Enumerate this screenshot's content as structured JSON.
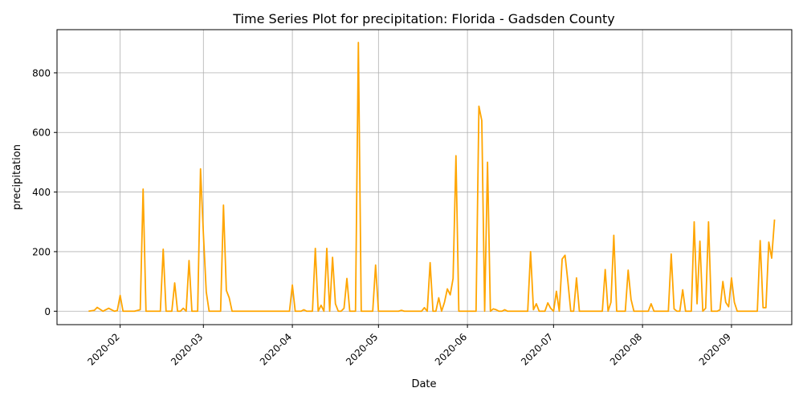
{
  "chart_data": {
    "type": "line",
    "title": "Time Series Plot for precipitation: Florida - Gadsden County",
    "xlabel": "Date",
    "ylabel": "precipitation",
    "x_range": [
      "2020-01-10",
      "2020-09-22"
    ],
    "ylim": [
      -45,
      945
    ],
    "grid": true,
    "line_color": "#FFA500",
    "y_ticks": [
      0,
      200,
      400,
      600,
      800
    ],
    "x_ticks": [
      "2020-02-01",
      "2020-03-01",
      "2020-04-01",
      "2020-05-01",
      "2020-06-01",
      "2020-07-01",
      "2020-08-01",
      "2020-09-01"
    ],
    "x_tick_labels": [
      "2020-02",
      "2020-03",
      "2020-04",
      "2020-05",
      "2020-06",
      "2020-07",
      "2020-08",
      "2020-09"
    ],
    "series": [
      {
        "points": [
          [
            "2020-01-21",
            0
          ],
          [
            "2020-01-23",
            3
          ],
          [
            "2020-01-24",
            13
          ],
          [
            "2020-01-26",
            0
          ],
          [
            "2020-01-28",
            10
          ],
          [
            "2020-01-30",
            0
          ],
          [
            "2020-01-31",
            2
          ],
          [
            "2020-02-01",
            53
          ],
          [
            "2020-02-02",
            0
          ],
          [
            "2020-02-06",
            0
          ],
          [
            "2020-02-08",
            5
          ],
          [
            "2020-02-09",
            410
          ],
          [
            "2020-02-10",
            0
          ],
          [
            "2020-02-15",
            0
          ],
          [
            "2020-02-16",
            208
          ],
          [
            "2020-02-17",
            0
          ],
          [
            "2020-02-19",
            0
          ],
          [
            "2020-02-20",
            95
          ],
          [
            "2020-02-21",
            0
          ],
          [
            "2020-02-22",
            0
          ],
          [
            "2020-02-23",
            10
          ],
          [
            "2020-02-24",
            0
          ],
          [
            "2020-02-25",
            170
          ],
          [
            "2020-02-26",
            0
          ],
          [
            "2020-02-28",
            0
          ],
          [
            "2020-02-29",
            478
          ],
          [
            "2020-03-01",
            260
          ],
          [
            "2020-03-02",
            65
          ],
          [
            "2020-03-03",
            0
          ],
          [
            "2020-03-07",
            0
          ],
          [
            "2020-03-08",
            356
          ],
          [
            "2020-03-09",
            70
          ],
          [
            "2020-03-10",
            45
          ],
          [
            "2020-03-11",
            0
          ],
          [
            "2020-03-31",
            0
          ],
          [
            "2020-04-01",
            88
          ],
          [
            "2020-04-02",
            0
          ],
          [
            "2020-04-04",
            0
          ],
          [
            "2020-04-05",
            5
          ],
          [
            "2020-04-06",
            0
          ],
          [
            "2020-04-08",
            0
          ],
          [
            "2020-04-09",
            211
          ],
          [
            "2020-04-10",
            0
          ],
          [
            "2020-04-11",
            20
          ],
          [
            "2020-04-12",
            0
          ],
          [
            "2020-04-13",
            211
          ],
          [
            "2020-04-14",
            0
          ],
          [
            "2020-04-15",
            181
          ],
          [
            "2020-04-16",
            25
          ],
          [
            "2020-04-17",
            0
          ],
          [
            "2020-04-18",
            0
          ],
          [
            "2020-04-19",
            10
          ],
          [
            "2020-04-20",
            110
          ],
          [
            "2020-04-21",
            0
          ],
          [
            "2020-04-23",
            0
          ],
          [
            "2020-04-24",
            902
          ],
          [
            "2020-04-25",
            0
          ],
          [
            "2020-04-29",
            0
          ],
          [
            "2020-04-30",
            155
          ],
          [
            "2020-05-01",
            0
          ],
          [
            "2020-05-08",
            0
          ],
          [
            "2020-05-09",
            3
          ],
          [
            "2020-05-10",
            0
          ],
          [
            "2020-05-16",
            0
          ],
          [
            "2020-05-17",
            12
          ],
          [
            "2020-05-18",
            0
          ],
          [
            "2020-05-19",
            163
          ],
          [
            "2020-05-20",
            0
          ],
          [
            "2020-05-21",
            0
          ],
          [
            "2020-05-22",
            45
          ],
          [
            "2020-05-23",
            0
          ],
          [
            "2020-05-24",
            30
          ],
          [
            "2020-05-25",
            75
          ],
          [
            "2020-05-26",
            55
          ],
          [
            "2020-05-27",
            110
          ],
          [
            "2020-05-28",
            522
          ],
          [
            "2020-05-29",
            0
          ],
          [
            "2020-06-04",
            0
          ],
          [
            "2020-06-05",
            688
          ],
          [
            "2020-06-06",
            640
          ],
          [
            "2020-06-07",
            0
          ],
          [
            "2020-06-08",
            500
          ],
          [
            "2020-06-09",
            0
          ],
          [
            "2020-06-10",
            8
          ],
          [
            "2020-06-11",
            5
          ],
          [
            "2020-06-12",
            0
          ],
          [
            "2020-06-13",
            0
          ],
          [
            "2020-06-14",
            5
          ],
          [
            "2020-06-15",
            0
          ],
          [
            "2020-06-22",
            0
          ],
          [
            "2020-06-23",
            200
          ],
          [
            "2020-06-24",
            5
          ],
          [
            "2020-06-25",
            25
          ],
          [
            "2020-06-26",
            0
          ],
          [
            "2020-06-28",
            0
          ],
          [
            "2020-06-29",
            28
          ],
          [
            "2020-06-30",
            10
          ],
          [
            "2020-07-01",
            0
          ],
          [
            "2020-07-02",
            67
          ],
          [
            "2020-07-03",
            0
          ],
          [
            "2020-07-04",
            175
          ],
          [
            "2020-07-05",
            188
          ],
          [
            "2020-07-06",
            100
          ],
          [
            "2020-07-07",
            0
          ],
          [
            "2020-07-08",
            0
          ],
          [
            "2020-07-09",
            112
          ],
          [
            "2020-07-10",
            0
          ],
          [
            "2020-07-18",
            0
          ],
          [
            "2020-07-19",
            140
          ],
          [
            "2020-07-20",
            0
          ],
          [
            "2020-07-21",
            30
          ],
          [
            "2020-07-22",
            255
          ],
          [
            "2020-07-23",
            0
          ],
          [
            "2020-07-26",
            0
          ],
          [
            "2020-07-27",
            138
          ],
          [
            "2020-07-28",
            40
          ],
          [
            "2020-07-29",
            0
          ],
          [
            "2020-08-03",
            0
          ],
          [
            "2020-08-04",
            25
          ],
          [
            "2020-08-05",
            0
          ],
          [
            "2020-08-10",
            0
          ],
          [
            "2020-08-11",
            192
          ],
          [
            "2020-08-12",
            8
          ],
          [
            "2020-08-13",
            0
          ],
          [
            "2020-08-14",
            0
          ],
          [
            "2020-08-15",
            72
          ],
          [
            "2020-08-16",
            0
          ],
          [
            "2020-08-18",
            0
          ],
          [
            "2020-08-19",
            300
          ],
          [
            "2020-08-20",
            25
          ],
          [
            "2020-08-21",
            235
          ],
          [
            "2020-08-22",
            0
          ],
          [
            "2020-08-23",
            10
          ],
          [
            "2020-08-24",
            300
          ],
          [
            "2020-08-25",
            0
          ],
          [
            "2020-08-27",
            0
          ],
          [
            "2020-08-28",
            5
          ],
          [
            "2020-08-29",
            100
          ],
          [
            "2020-08-30",
            30
          ],
          [
            "2020-08-31",
            15
          ],
          [
            "2020-09-01",
            112
          ],
          [
            "2020-09-02",
            30
          ],
          [
            "2020-09-03",
            0
          ],
          [
            "2020-09-10",
            0
          ],
          [
            "2020-09-11",
            237
          ],
          [
            "2020-09-12",
            12
          ],
          [
            "2020-09-13",
            12
          ],
          [
            "2020-09-14",
            232
          ],
          [
            "2020-09-15",
            178
          ],
          [
            "2020-09-16",
            308
          ]
        ]
      }
    ]
  }
}
